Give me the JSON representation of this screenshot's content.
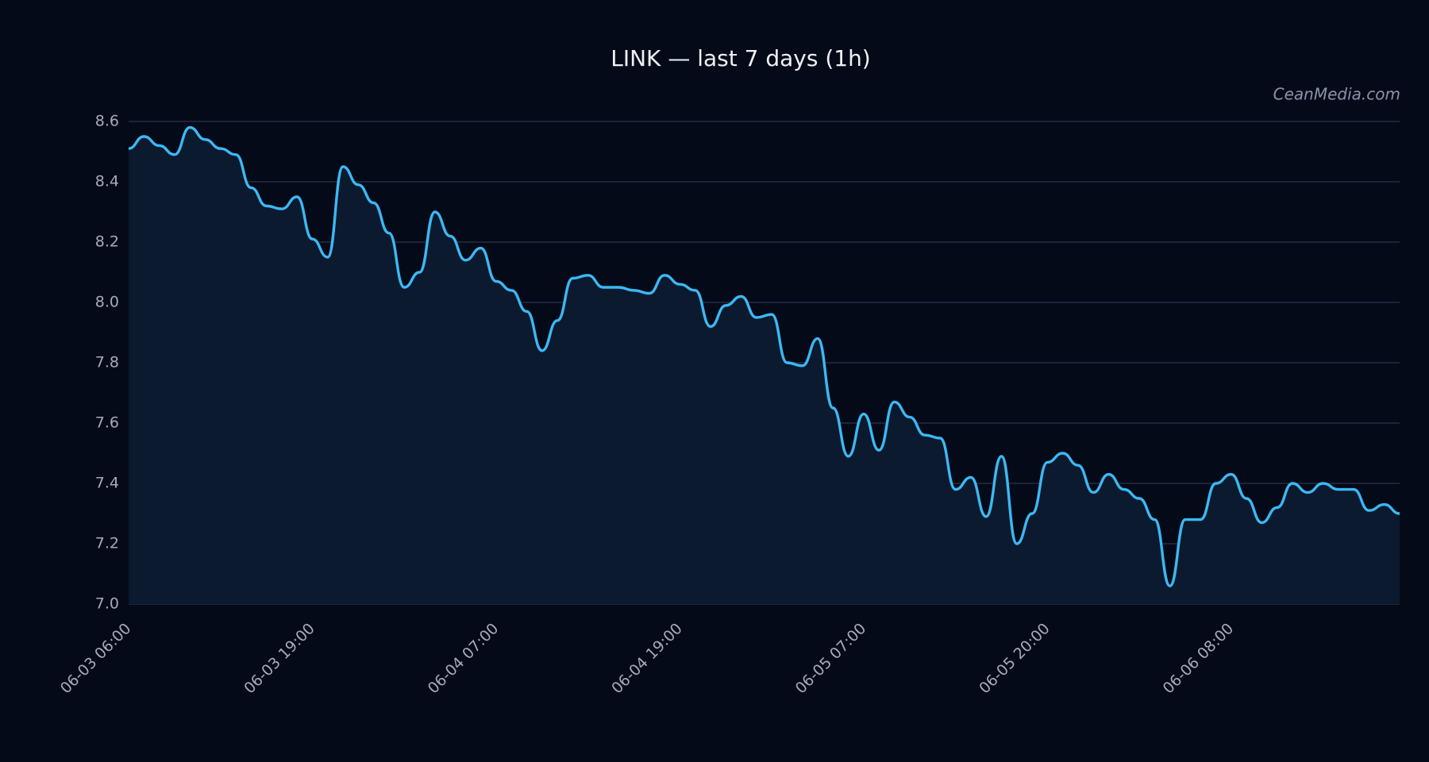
{
  "chart_data": {
    "type": "line",
    "title": "LINK — last 7 days (1h)",
    "watermark": "CeanMedia.com",
    "categories": [
      "06-03 06:00",
      null,
      null,
      null,
      null,
      null,
      null,
      null,
      null,
      null,
      null,
      null,
      "06-03 19:00",
      null,
      null,
      null,
      null,
      null,
      null,
      null,
      null,
      null,
      null,
      null,
      "06-04 07:00",
      null,
      null,
      null,
      null,
      null,
      null,
      null,
      null,
      null,
      null,
      null,
      "06-04 19:00",
      null,
      null,
      null,
      null,
      null,
      null,
      null,
      null,
      null,
      null,
      null,
      "06-05 07:00",
      null,
      null,
      null,
      null,
      null,
      null,
      null,
      null,
      null,
      null,
      null,
      "06-05 20:00",
      null,
      null,
      null,
      null,
      null,
      null,
      null,
      null,
      null,
      null,
      null,
      "06-06 08:00",
      null,
      null,
      null,
      null,
      null,
      null,
      null,
      null,
      null,
      null,
      null
    ],
    "series": [
      {
        "name": "LINK",
        "color": "#3bb8f3",
        "values": [
          8.51,
          8.55,
          8.52,
          8.49,
          8.58,
          8.54,
          8.51,
          8.49,
          8.38,
          8.32,
          8.31,
          8.35,
          8.21,
          8.15,
          8.45,
          8.39,
          8.33,
          8.23,
          8.05,
          8.1,
          8.3,
          8.22,
          8.14,
          8.18,
          8.07,
          8.04,
          7.97,
          7.84,
          7.94,
          8.08,
          8.09,
          8.05,
          8.05,
          8.04,
          8.03,
          8.09,
          8.06,
          8.04,
          7.92,
          7.99,
          8.02,
          7.95,
          7.96,
          7.8,
          7.79,
          7.88,
          7.65,
          7.49,
          7.63,
          7.51,
          7.67,
          7.62,
          7.56,
          7.55,
          7.38,
          7.42,
          7.29,
          7.49,
          7.2,
          7.3,
          7.47,
          7.5,
          7.46,
          7.37,
          7.43,
          7.38,
          7.35,
          7.28,
          7.06,
          7.28,
          7.28,
          7.4,
          7.43,
          7.35,
          7.27,
          7.32,
          7.4,
          7.37,
          7.4,
          7.38,
          7.38,
          7.31,
          7.33,
          7.3
        ]
      }
    ],
    "ylim": [
      7.0,
      8.6
    ],
    "yticks": [
      {
        "value": 7,
        "label": "7.0"
      },
      7.2,
      7.4,
      7.6,
      7.8,
      {
        "value": 8,
        "label": "8.0"
      },
      8.2,
      8.4,
      8.6
    ],
    "grid": true,
    "area_fill": "#0b1a2e"
  }
}
